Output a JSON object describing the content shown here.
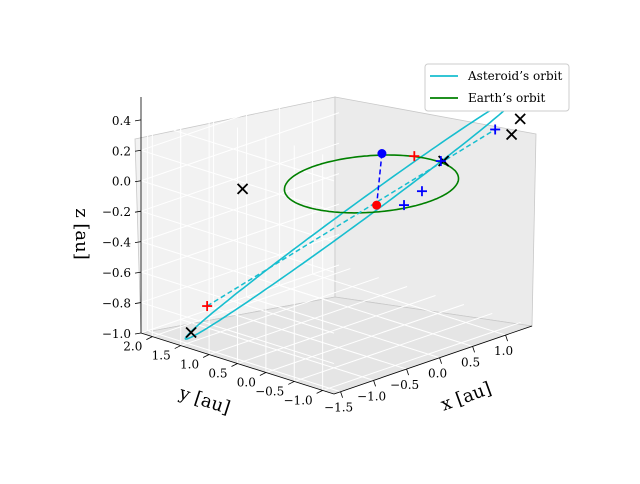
{
  "chart_data": {
    "type": "line3d",
    "title": "",
    "xlabel": "x [au]",
    "ylabel": "y [au]",
    "zlabel": "z [au]",
    "xlim": [
      -1.6,
      1.4
    ],
    "ylim": [
      -1.2,
      2.2
    ],
    "zlim": [
      -1.0,
      0.55
    ],
    "xticks": [
      -1.5,
      -1.0,
      -0.5,
      0.0,
      0.5,
      1.0
    ],
    "yticks": [
      -1.0,
      -0.5,
      0.0,
      0.5,
      1.0,
      1.5,
      2.0
    ],
    "zticks": [
      -1.0,
      -0.8,
      -0.6,
      -0.4,
      -0.2,
      0.0,
      0.2,
      0.4
    ],
    "xtick_labels": [
      "−1.5",
      "−1.0",
      "−0.5",
      "0.0",
      "0.5",
      "1.0"
    ],
    "ytick_labels": [
      "−1.0",
      "−0.5",
      "0.0",
      "0.5",
      "1.0",
      "1.5",
      "2.0"
    ],
    "ztick_labels": [
      "−1.0",
      "−0.8",
      "−0.6",
      "−0.4",
      "−0.2",
      "0.0",
      "0.2",
      "0.4"
    ],
    "grid": true,
    "legend": {
      "position": "upper-right",
      "entries": [
        {
          "label": "Asteroid’s orbit",
          "color": "#17becf"
        },
        {
          "label": "Earth’s orbit",
          "color": "#008000"
        }
      ]
    },
    "series": [
      {
        "name": "Asteroid’s orbit",
        "color": "#17becf",
        "style": "solid",
        "shape": "ellipse",
        "center": [
          -0.05,
          0.3,
          -0.25
        ],
        "semi_axis_1": [
          1.35,
          -1.35,
          0.75
        ],
        "semi_axis_2": [
          0.15,
          0.12,
          0.05
        ]
      },
      {
        "name": "Earth’s orbit",
        "color": "#008000",
        "style": "solid",
        "shape": "circle",
        "center": [
          0,
          0,
          0
        ],
        "radius": 1.0
      }
    ],
    "connectors": [
      {
        "kind": "line-of-nodes",
        "color": "#17becf",
        "style": "dashed",
        "from": [
          -1.2,
          1.5,
          -0.8
        ],
        "to": [
          1.1,
          -0.9,
          0.3
        ]
      },
      {
        "kind": "node-connector",
        "color": "#0000ff",
        "style": "dashed",
        "from": [
          -0.1,
          -0.3,
          0.25
        ],
        "to": [
          0.25,
          0.2,
          -0.2
        ]
      }
    ],
    "markers": [
      {
        "symbol": "x",
        "color": "#000000",
        "pos": [
          1.35,
          -1.05,
          0.35
        ]
      },
      {
        "symbol": "x",
        "color": "#000000",
        "pos": [
          1.28,
          -0.98,
          0.25
        ]
      },
      {
        "symbol": "x",
        "color": "#000000",
        "pos": [
          -1.05,
          1.05,
          0.0
        ]
      },
      {
        "symbol": "x",
        "color": "#000000",
        "pos": [
          1.05,
          -0.05,
          0.0
        ]
      },
      {
        "symbol": "x",
        "color": "#000000",
        "pos": [
          -1.4,
          1.55,
          -0.95
        ]
      },
      {
        "symbol": "+",
        "color": "#ff0000",
        "pos": [
          -1.2,
          1.5,
          -0.8
        ]
      },
      {
        "symbol": "+",
        "color": "#ff0000",
        "pos": [
          0.95,
          0.35,
          0.0
        ]
      },
      {
        "symbol": "+",
        "color": "#0000ff",
        "pos": [
          1.1,
          -0.9,
          0.3
        ]
      },
      {
        "symbol": "+",
        "color": "#0000ff",
        "pos": [
          0.75,
          -0.35,
          0.08
        ]
      },
      {
        "symbol": "+",
        "color": "#0000ff",
        "pos": [
          0.55,
          -0.25,
          -0.1
        ]
      },
      {
        "symbol": "+",
        "color": "#0000ff",
        "pos": [
          0.45,
          -0.05,
          -0.2
        ]
      },
      {
        "symbol": "o",
        "color": "#0000ff",
        "pos": [
          -0.1,
          -0.3,
          0.25
        ]
      },
      {
        "symbol": "o",
        "color": "#ff0000",
        "pos": [
          0.25,
          0.2,
          -0.2
        ]
      }
    ]
  }
}
